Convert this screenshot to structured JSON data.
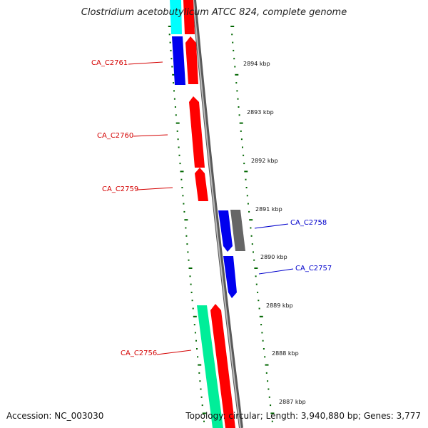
{
  "title": "Clostridium acetobutylicum ATCC 824, complete genome",
  "accession": "Accession: NC_003030",
  "summary": "Topology: circular; Length: 3,940,880 bp; Genes: 3,777",
  "colors": {
    "backbone": "#777777",
    "forward_strand": "#ff0000",
    "reverse_strand": "#0000ff",
    "rna": "#00ff99",
    "other": "#666666",
    "tick": "#006600",
    "cyan_gene": "#00ffff"
  },
  "ruler_labels": [
    "2894 kbp",
    "2893 kbp",
    "2892 kbp",
    "2891 kbp",
    "2890 kbp",
    "2889 kbp",
    "2888 kbp",
    "2887 kbp"
  ],
  "gene_labels": {
    "c2761": "CA_C2761",
    "c2760": "CA_C2760",
    "c2759": "CA_C2759",
    "c2758": "CA_C2758",
    "c2757": "CA_C2757",
    "c2756": "CA_C2756"
  }
}
